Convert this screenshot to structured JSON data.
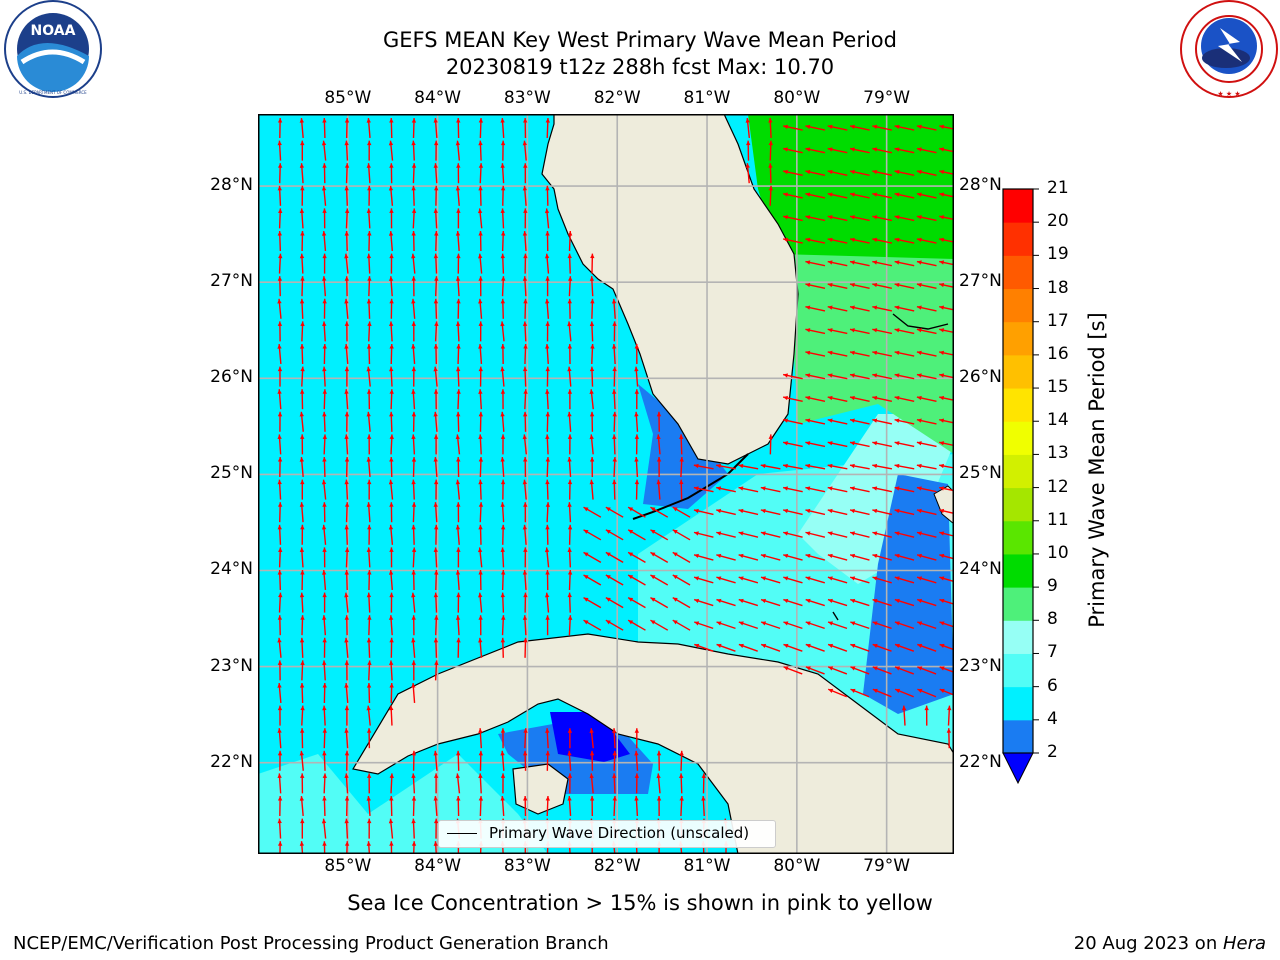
{
  "title": {
    "line1": "GEFS MEAN Key West Primary Wave Mean Period",
    "line2": "20230819 t12z 288h fcst   Max: 10.70"
  },
  "logos": {
    "left": {
      "icon": "noaa-logo",
      "text": "NOAA",
      "ring_text": "NATIONAL OCEANIC AND ATMOSPHERIC ADMINISTRATION · U.S. DEPARTMENT OF COMMERCE"
    },
    "right": {
      "icon": "nws-logo",
      "ring_text": "NATIONAL WEATHER SERVICE"
    }
  },
  "map": {
    "region": "Key West / South Florida / Cuba",
    "lon_ticks": [
      "85°W",
      "84°W",
      "83°W",
      "82°W",
      "81°W",
      "80°W",
      "79°W"
    ],
    "lat_ticks": [
      "28°N",
      "27°N",
      "26°N",
      "25°N",
      "24°N",
      "23°N",
      "22°N"
    ],
    "lon_range": [
      -86,
      -78.25
    ],
    "lat_range": [
      21.05,
      28.75
    ],
    "gridlines": true,
    "land_color": "#eeecdc",
    "arrow_color": "#ff0000",
    "legend": {
      "label": "Primary Wave Direction (unscaled)",
      "placement": "bottom-center"
    }
  },
  "colorbar": {
    "label": "Primary Wave Mean Period [s]",
    "ticks": [
      "21",
      "20",
      "19",
      "18",
      "17",
      "16",
      "15",
      "14",
      "13",
      "12",
      "11",
      "10",
      "9",
      "8",
      "7",
      "6",
      "4",
      "2"
    ],
    "levels": [
      2,
      4,
      6,
      7,
      8,
      9,
      10,
      11,
      12,
      13,
      14,
      15,
      16,
      17,
      18,
      19,
      20,
      21
    ],
    "colors": [
      "#1a7cf2",
      "#00f0ff",
      "#52fdf6",
      "#96fff5",
      "#4ef07a",
      "#00dc00",
      "#5ae600",
      "#a5e600",
      "#d2f000",
      "#f0ff00",
      "#ffe400",
      "#ffc000",
      "#ffa000",
      "#ff8000",
      "#ff5a00",
      "#ff3000",
      "#ff0000"
    ],
    "under_color": "#0000ff",
    "extend": "min"
  },
  "chart_data": {
    "type": "heatmap",
    "title": "GEFS MEAN Key West Primary Wave Mean Period",
    "subtitle": "20230819 t12z 288h fcst   Max: 10.70",
    "max_value": 10.7,
    "units": "s",
    "zones": [
      {
        "area": "Gulf of Mexico west of Florida",
        "period_range": [
          4,
          6
        ],
        "direction": "northward"
      },
      {
        "area": "Atlantic east of Florida north of 26.3°N",
        "period_range": [
          9,
          10.7
        ],
        "direction": "westward"
      },
      {
        "area": "Florida Straits",
        "period_range": [
          6,
          8
        ],
        "direction": "westward"
      },
      {
        "area": "Florida Bay / Keys",
        "period_range": [
          2,
          4
        ]
      },
      {
        "area": "Great Bahama Bank edge",
        "period_range": [
          2,
          4
        ]
      },
      {
        "area": "Gulf of Batabanó",
        "period_range": [
          0,
          2
        ]
      }
    ]
  },
  "caption": "Sea Ice Concentration > 15% is shown in pink to yellow",
  "footer": {
    "left": "NCEP/EMC/Verification Post Processing Product Generation Branch",
    "right_prefix": "20 Aug 2023 on ",
    "right_host": "Hera"
  }
}
